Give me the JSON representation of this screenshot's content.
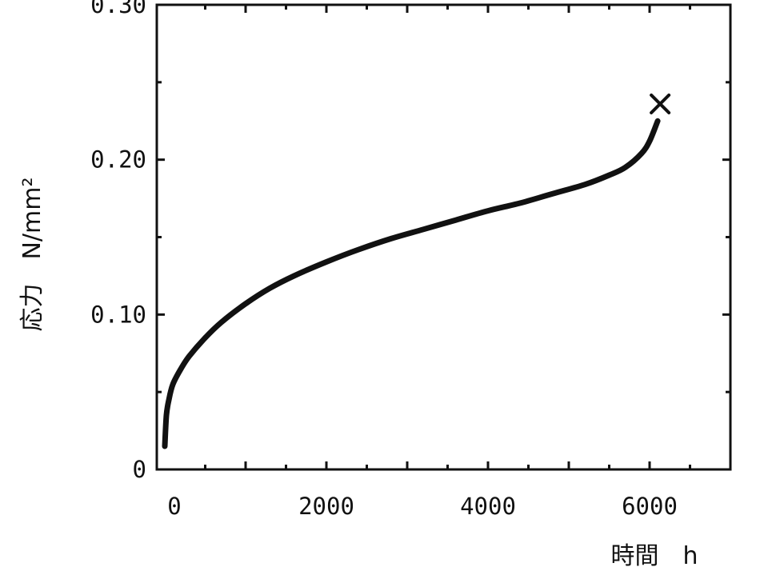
{
  "chart_data": {
    "type": "line",
    "title": "",
    "xlabel": "時間　h",
    "ylabel": "応力　N/mm²",
    "xlim": [
      0,
      7000
    ],
    "ylim": [
      0,
      0.3
    ],
    "x_ticks": [
      {
        "value": 0,
        "label": "0"
      },
      {
        "value": 2000,
        "label": "2000"
      },
      {
        "value": 4000,
        "label": "4000"
      },
      {
        "value": 6000,
        "label": "6000"
      }
    ],
    "y_ticks": [
      {
        "value": 0,
        "label": "0"
      },
      {
        "value": 0.1,
        "label": "0.10"
      },
      {
        "value": 0.2,
        "label": "0.20"
      },
      {
        "value": 0.3,
        "label": "0.30"
      }
    ],
    "grid": false,
    "series": [
      {
        "color": "#111111",
        "x": [
          0,
          20,
          50,
          100,
          200,
          300,
          500,
          700,
          1000,
          1300,
          1600,
          2000,
          2400,
          2800,
          3200,
          3600,
          4000,
          4400,
          4800,
          5200,
          5500,
          5700,
          5900,
          6000,
          6100
        ],
        "y": [
          0.015,
          0.035,
          0.045,
          0.055,
          0.065,
          0.073,
          0.085,
          0.095,
          0.107,
          0.117,
          0.125,
          0.134,
          0.142,
          0.149,
          0.155,
          0.161,
          0.167,
          0.172,
          0.178,
          0.184,
          0.19,
          0.195,
          0.204,
          0.212,
          0.225
        ]
      }
    ],
    "annotations": [
      {
        "type": "x-marker",
        "meaning": "rupture",
        "x": 6130,
        "y": 0.236
      }
    ]
  }
}
